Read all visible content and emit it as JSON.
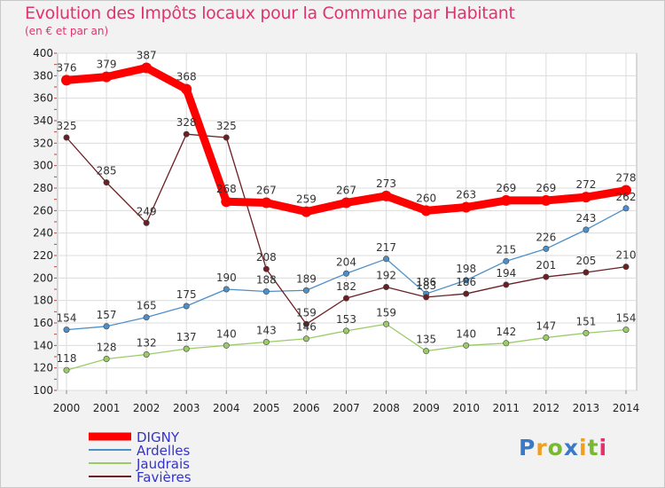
{
  "header": {
    "title": "Evolution des Impôts locaux pour la Commune par Habitant",
    "subtitle": "(en € et par an)"
  },
  "brand": {
    "text": "Proxiti",
    "letters": [
      {
        "ch": "P",
        "color": "#3a78c8"
      },
      {
        "ch": "r",
        "color": "#f0a020"
      },
      {
        "ch": "o",
        "color": "#78b832"
      },
      {
        "ch": "x",
        "color": "#3a78c8"
      },
      {
        "ch": "i",
        "color": "#f0a020"
      },
      {
        "ch": "t",
        "color": "#78b832"
      },
      {
        "ch": "i",
        "color": "#e0336e"
      }
    ]
  },
  "chart_data": {
    "type": "line",
    "title": "Evolution des Impôts locaux pour la Commune par Habitant",
    "subtitle": "(en € et par an)",
    "xlabel": "",
    "ylabel": "",
    "x": [
      "2000",
      "2001",
      "2002",
      "2003",
      "2004",
      "2005",
      "2006",
      "2007",
      "2008",
      "2009",
      "2010",
      "2011",
      "2012",
      "2013",
      "2014"
    ],
    "ylim": [
      100,
      400
    ],
    "yticks": [
      100,
      120,
      140,
      160,
      180,
      200,
      220,
      240,
      260,
      280,
      300,
      320,
      340,
      360,
      380,
      400
    ],
    "grid": true,
    "legend_position": "bottom-left",
    "series": [
      {
        "name": "DIGNY",
        "color": "#ff0000",
        "legend_color": "#3333cc",
        "values": [
          376,
          379,
          387,
          368,
          268,
          267,
          259,
          267,
          273,
          260,
          263,
          269,
          269,
          272,
          278
        ]
      },
      {
        "name": "Ardelles",
        "color": "#4d8fc9",
        "legend_color": "#3333cc",
        "values": [
          154,
          157,
          165,
          175,
          190,
          188,
          189,
          204,
          217,
          186,
          198,
          215,
          226,
          243,
          262
        ]
      },
      {
        "name": "Jaudrais",
        "color": "#99cc66",
        "legend_color": "#3333cc",
        "values": [
          118,
          128,
          132,
          137,
          140,
          143,
          146,
          153,
          159,
          135,
          140,
          142,
          147,
          151,
          154
        ]
      },
      {
        "name": "Favières",
        "color": "#6b1f24",
        "legend_color": "#3333cc",
        "values": [
          325,
          285,
          249,
          328,
          325,
          208,
          159,
          182,
          192,
          183,
          186,
          194,
          201,
          205,
          210
        ]
      }
    ]
  }
}
